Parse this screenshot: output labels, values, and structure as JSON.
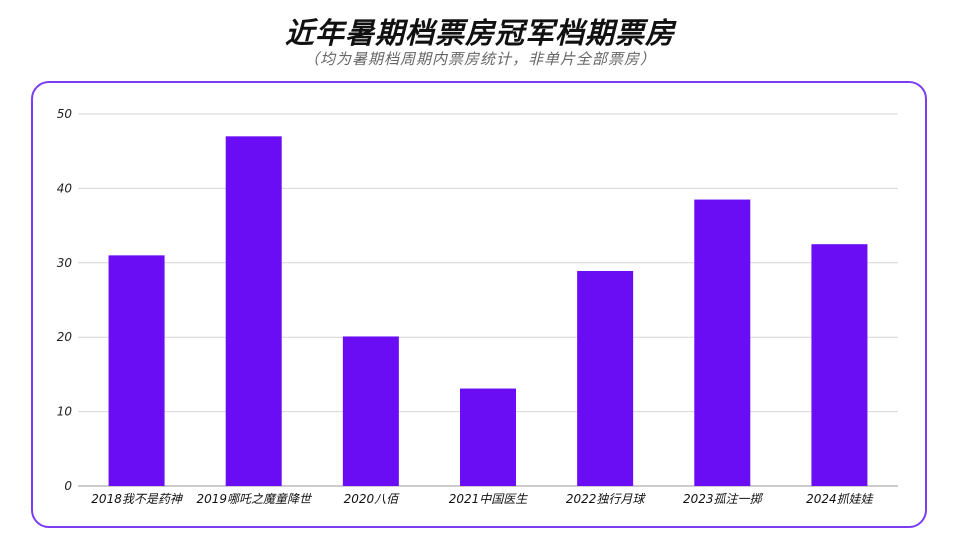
{
  "header": {
    "title": "近年暑期档票房冠军档期票房",
    "subtitle": "（均为暑期档周期内票房统计，非单片全部票房）"
  },
  "colors": {
    "bar": "#6a0df5",
    "frame": "#7b3df2",
    "grid": "#d6d6d6"
  },
  "chart_data": {
    "type": "bar",
    "title": "近年暑期档票房冠军档期票房",
    "subtitle": "（均为暑期档周期内票房统计，非单片全部票房）",
    "xlabel": "",
    "ylabel": "",
    "categories": [
      "2018我不是药神",
      "2019哪吒之魔童降世",
      "2020八佰",
      "2021中国医生",
      "2022独行月球",
      "2023孤注一掷",
      "2024抓娃娃"
    ],
    "values": [
      31,
      47,
      20.1,
      13.1,
      28.9,
      38.5,
      32.5
    ],
    "ylim": [
      0,
      50
    ],
    "yticks": [
      "0",
      "10",
      "20",
      "30",
      "40",
      "50"
    ],
    "grid": true,
    "legend": "none"
  }
}
